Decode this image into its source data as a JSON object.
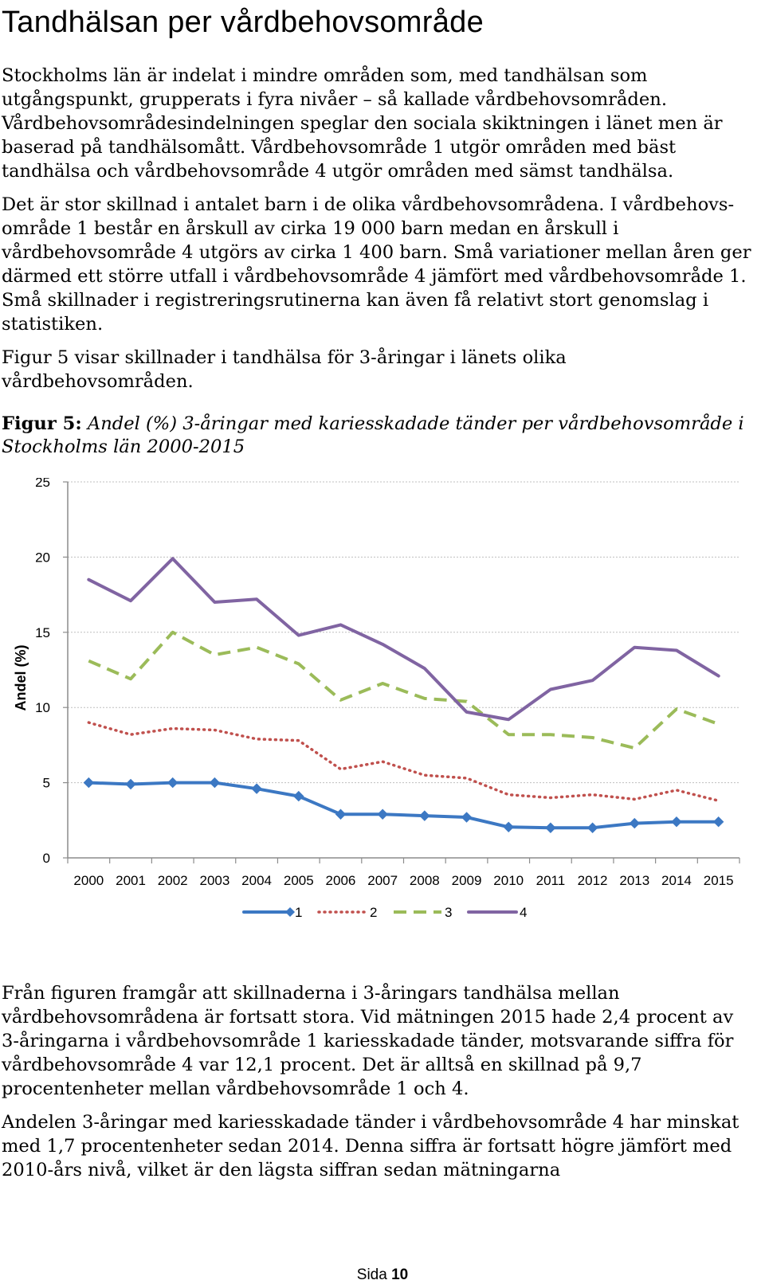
{
  "page": {
    "title": "Tandhälsan per vårdbehovsområde",
    "intro_paragraphs": [
      "Stockholms län är indelat i mindre områden som, med tandhälsan som utgångspunkt, grupperats i fyra nivåer – så kallade vårdbehovsområden. Vårdbehovsområdesindelningen speglar den sociala skiktningen i länet men är baserad på tandhälsomått. Vårdbehovsområde 1 utgör områden med bäst tandhälsa och vårdbehovsområde 4 utgör områden med sämst tandhälsa.",
      "Det är stor skillnad i antalet barn i de olika vårdbehovsområdena. I vårdbehovs-område 1 består en årskull av cirka 19 000 barn medan en årskull i vårdbehovsområde 4 utgörs av cirka 1 400 barn. Små variationer mellan åren ger därmed ett större utfall i vårdbehovsområde 4 jämfört med vårdbehovsområde 1. Små skillnader i registreringsrutinerna kan även få relativt stort genomslag i statistiken.",
      "Figur 5 visar skillnader i tandhälsa för 3-åringar i länets olika vårdbehovsområden."
    ],
    "figure_caption": {
      "lead": "Figur 5:",
      "text": "Andel (%) 3-åringar med kariesskadade tänder per vårdbehovsområde i Stockholms län 2000-2015"
    },
    "after_paragraphs": [
      "Från figuren framgår att skillnaderna i 3-åringars tandhälsa mellan vårdbehovsområdena är fortsatt stora. Vid mätningen 2015 hade 2,4 procent av 3-åringarna i vårdbehovsområde 1 kariesskadade tänder, motsvarande siffra för vårdbehovsområde 4 var 12,1 procent. Det är alltså en skillnad på 9,7 procentenheter mellan vårdbehovsområde 1 och 4.",
      "Andelen 3-åringar med kariesskadade tänder i vårdbehovsområde 4 har minskat med 1,7 procentenheter sedan 2014. Denna siffra är fortsatt högre jämfört med 2010-års nivå, vilket är den lägsta siffran sedan mätningarna"
    ],
    "footer": {
      "label": "Sida",
      "number": "10"
    }
  },
  "chart_data": {
    "type": "line",
    "title": "",
    "xlabel": "",
    "ylabel": "Andel (%)",
    "ylim": [
      0,
      25
    ],
    "yticks": [
      "0",
      "5",
      "10",
      "15",
      "20",
      "25"
    ],
    "grid": true,
    "legend_position": "bottom",
    "x": [
      "2000",
      "2001",
      "2002",
      "2003",
      "2004",
      "2005",
      "2006",
      "2007",
      "2008",
      "2009",
      "2010",
      "2011",
      "2012",
      "2013",
      "2014",
      "2015"
    ],
    "series": [
      {
        "name": "1",
        "color": "#3c78c3",
        "style": "solid-diamond",
        "values": [
          5.0,
          4.9,
          5.0,
          5.0,
          4.6,
          4.1,
          2.9,
          2.9,
          2.8,
          2.7,
          2.05,
          2.0,
          2.0,
          2.3,
          2.4,
          2.4
        ]
      },
      {
        "name": "2",
        "color": "#c0504d",
        "style": "dotted",
        "values": [
          9.0,
          8.2,
          8.6,
          8.5,
          7.9,
          7.8,
          5.9,
          6.4,
          5.5,
          5.3,
          4.2,
          4.0,
          4.2,
          3.9,
          4.5,
          3.8
        ]
      },
      {
        "name": "3",
        "color": "#9bbb59",
        "style": "dashed",
        "values": [
          13.1,
          11.9,
          15.0,
          13.5,
          14.0,
          12.9,
          10.5,
          11.6,
          10.6,
          10.4,
          8.2,
          8.2,
          8.0,
          7.3,
          9.9,
          8.9
        ]
      },
      {
        "name": "4",
        "color": "#8064a2",
        "style": "solid",
        "values": [
          18.5,
          17.1,
          19.9,
          17.0,
          17.2,
          14.8,
          15.5,
          14.2,
          12.6,
          9.7,
          9.2,
          11.2,
          11.8,
          14.0,
          13.8,
          12.1
        ]
      }
    ]
  }
}
